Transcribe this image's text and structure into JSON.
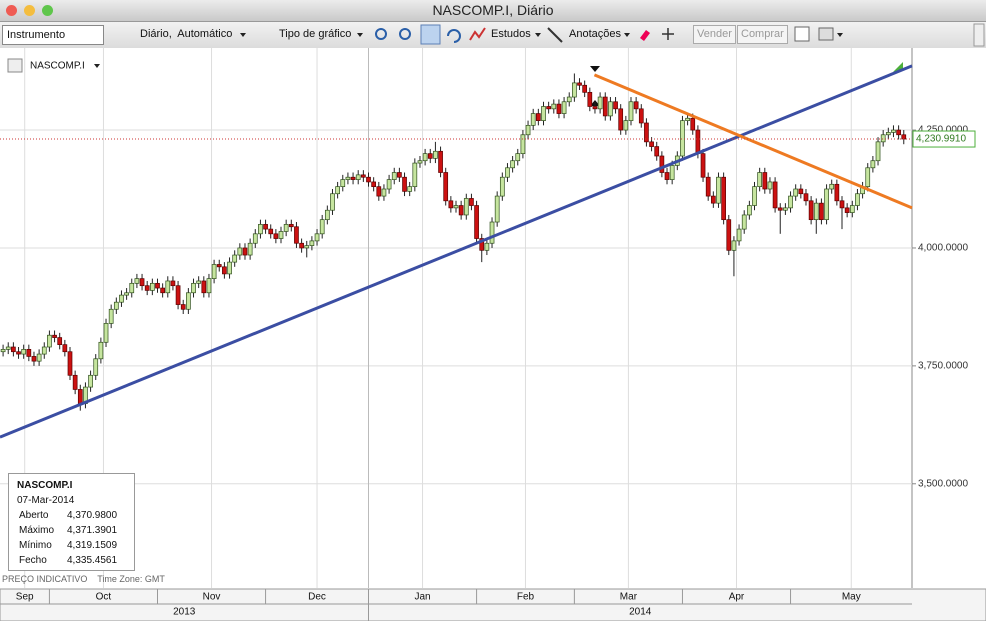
{
  "window": {
    "title": "NASCOMP.I, Diário"
  },
  "toolbar": {
    "instrument": "Instrumento",
    "period": "Diário,  Automático",
    "chart_type": "Tipo de gráfico",
    "studies": "Estudos",
    "annotations": "Anotações",
    "sell": "Vender",
    "buy": "Comprar"
  },
  "chart_data": {
    "type": "candlestick",
    "instrument": "NASCOMP.I",
    "grid": true,
    "up_color": "#c6e59f",
    "down_color": "#cc1111",
    "xlim": [
      -0.6,
      176.6
    ],
    "xticks": [
      {
        "value": -12,
        "label": "Sep"
      },
      {
        "value": 9,
        "label": "Oct"
      },
      {
        "value": 30,
        "label": "Nov"
      },
      {
        "value": 51,
        "label": "Dec"
      },
      {
        "value": 71,
        "label": "Jan"
      },
      {
        "value": 92,
        "label": "Feb"
      },
      {
        "value": 111,
        "label": "Mar"
      },
      {
        "value": 132,
        "label": "Apr"
      },
      {
        "value": 153,
        "label": "May"
      }
    ],
    "year_ticks": [
      {
        "value": -80,
        "label": "2013"
      },
      {
        "value": 71,
        "label": "2014"
      }
    ],
    "ylim": [
      3279,
      4424
    ],
    "yticks": [
      {
        "value": 3500,
        "label": "3,500.0000"
      },
      {
        "value": 3750,
        "label": "3,750.0000"
      },
      {
        "value": 4000,
        "label": "4,000.0000"
      },
      {
        "value": 4250,
        "label": "4,250.0000"
      }
    ],
    "open": [
      3780,
      3785,
      3790,
      3780,
      3775,
      3785,
      3770,
      3760,
      3775,
      3790,
      3815,
      3810,
      3795,
      3780,
      3730,
      3700,
      3670,
      3705,
      3730,
      3765,
      3800,
      3840,
      3870,
      3885,
      3900,
      3905,
      3925,
      3935,
      3920,
      3910,
      3925,
      3915,
      3905,
      3930,
      3920,
      3880,
      3870,
      3905,
      3925,
      3930,
      3905,
      3935,
      3965,
      3960,
      3945,
      3970,
      3985,
      4000,
      3985,
      4010,
      4030,
      4050,
      4040,
      4030,
      4020,
      4035,
      4050,
      4045,
      4010,
      4000,
      4005,
      4015,
      4030,
      4060,
      4080,
      4115,
      4130,
      4145,
      4150,
      4145,
      4155,
      4150,
      4140,
      4130,
      4110,
      4125,
      4145,
      4160,
      4150,
      4120,
      4130,
      4180,
      4185,
      4200,
      4190,
      4205,
      4160,
      4100,
      4085,
      4090,
      4070,
      4105,
      4090,
      4020,
      3995,
      4010,
      4055,
      4110,
      4150,
      4170,
      4185,
      4200,
      4240,
      4260,
      4285,
      4270,
      4300,
      4295,
      4305,
      4285,
      4310,
      4320,
      4350,
      4345,
      4330,
      4300,
      4295,
      4320,
      4280,
      4310,
      4295,
      4250,
      4270,
      4310,
      4295,
      4265,
      4225,
      4215,
      4195,
      4160,
      4145,
      4175,
      4195,
      4270,
      4275,
      4250,
      4200,
      4150,
      4110,
      4095,
      4150,
      4060,
      3995,
      4015,
      4040,
      4070,
      4090,
      4130,
      4160,
      4125,
      4140,
      4085,
      4080,
      4085,
      4110,
      4125,
      4115,
      4100,
      4060,
      4095,
      4060,
      4125,
      4135,
      4100,
      4085,
      4075,
      4090,
      4115,
      4130,
      4170,
      4185,
      4225,
      4240,
      4245,
      4250,
      4240
    ],
    "high": [
      3795,
      3800,
      3800,
      3790,
      3795,
      3795,
      3780,
      3785,
      3800,
      3825,
      3825,
      3820,
      3805,
      3790,
      3740,
      3710,
      3715,
      3740,
      3775,
      3810,
      3850,
      3880,
      3895,
      3910,
      3915,
      3935,
      3945,
      3945,
      3930,
      3935,
      3935,
      3925,
      3940,
      3940,
      3930,
      3890,
      3915,
      3935,
      3940,
      3940,
      3945,
      3975,
      3975,
      3970,
      3980,
      3995,
      4010,
      4010,
      4020,
      4040,
      4060,
      4060,
      4050,
      4040,
      4045,
      4060,
      4060,
      4055,
      4020,
      4015,
      4025,
      4040,
      4070,
      4090,
      4125,
      4140,
      4155,
      4160,
      4160,
      4165,
      4165,
      4160,
      4150,
      4140,
      4135,
      4155,
      4170,
      4170,
      4160,
      4140,
      4190,
      4195,
      4210,
      4210,
      4225,
      4215,
      4170,
      4110,
      4100,
      4100,
      4115,
      4115,
      4100,
      4030,
      4020,
      4065,
      4120,
      4160,
      4180,
      4195,
      4210,
      4250,
      4270,
      4295,
      4295,
      4310,
      4310,
      4315,
      4315,
      4320,
      4330,
      4370,
      4360,
      4355,
      4340,
      4310,
      4330,
      4330,
      4320,
      4320,
      4305,
      4280,
      4320,
      4320,
      4305,
      4275,
      4235,
      4225,
      4205,
      4170,
      4185,
      4205,
      4280,
      4285,
      4285,
      4260,
      4210,
      4160,
      4120,
      4160,
      4160,
      4070,
      4025,
      4050,
      4080,
      4100,
      4140,
      4170,
      4170,
      4150,
      4150,
      4095,
      4095,
      4120,
      4135,
      4135,
      4125,
      4110,
      4105,
      4105,
      4135,
      4145,
      4145,
      4110,
      4095,
      4100,
      4125,
      4140,
      4180,
      4195,
      4235,
      4250,
      4255,
      4260,
      4260,
      4250
    ],
    "low": [
      3770,
      3775,
      3770,
      3765,
      3765,
      3760,
      3750,
      3750,
      3765,
      3780,
      3800,
      3785,
      3770,
      3720,
      3690,
      3655,
      3660,
      3695,
      3720,
      3755,
      3790,
      3830,
      3860,
      3875,
      3890,
      3895,
      3915,
      3910,
      3900,
      3900,
      3905,
      3895,
      3895,
      3910,
      3870,
      3860,
      3860,
      3895,
      3915,
      3895,
      3895,
      3925,
      3950,
      3935,
      3935,
      3960,
      3975,
      3975,
      3975,
      4000,
      4020,
      4030,
      4020,
      4010,
      4010,
      4025,
      4035,
      4000,
      3990,
      3980,
      3995,
      4005,
      4020,
      4050,
      4070,
      4105,
      4120,
      4135,
      4135,
      4135,
      4140,
      4130,
      4120,
      4100,
      4100,
      4115,
      4135,
      4140,
      4110,
      4110,
      4120,
      4170,
      4175,
      4180,
      4180,
      4150,
      4090,
      4075,
      4075,
      4060,
      4060,
      4080,
      4010,
      3970,
      3985,
      4000,
      4045,
      4100,
      4140,
      4160,
      4175,
      4190,
      4230,
      4250,
      4260,
      4260,
      4285,
      4285,
      4275,
      4275,
      4300,
      4310,
      4335,
      4320,
      4290,
      4285,
      4285,
      4270,
      4270,
      4285,
      4240,
      4240,
      4260,
      4285,
      4255,
      4215,
      4205,
      4185,
      4150,
      4135,
      4135,
      4165,
      4185,
      4260,
      4240,
      4190,
      4140,
      4100,
      4085,
      4085,
      4050,
      3985,
      3940,
      4005,
      4030,
      4060,
      4080,
      4120,
      4115,
      4115,
      4075,
      4030,
      4070,
      4075,
      4100,
      4105,
      4090,
      4050,
      4030,
      4050,
      4050,
      4115,
      4090,
      4040,
      4065,
      4065,
      4080,
      4105,
      4120,
      4160,
      4175,
      4215,
      4230,
      4235,
      4230,
      4220
    ],
    "close": [
      3785,
      3790,
      3780,
      3775,
      3785,
      3770,
      3760,
      3775,
      3790,
      3815,
      3810,
      3795,
      3780,
      3730,
      3700,
      3670,
      3705,
      3730,
      3765,
      3800,
      3840,
      3870,
      3885,
      3900,
      3905,
      3925,
      3935,
      3920,
      3910,
      3925,
      3915,
      3905,
      3930,
      3920,
      3880,
      3870,
      3905,
      3925,
      3930,
      3905,
      3935,
      3965,
      3960,
      3945,
      3970,
      3985,
      4000,
      3985,
      4010,
      4030,
      4050,
      4040,
      4030,
      4020,
      4035,
      4050,
      4045,
      4010,
      4000,
      4005,
      4015,
      4030,
      4060,
      4080,
      4115,
      4130,
      4145,
      4150,
      4145,
      4155,
      4150,
      4140,
      4130,
      4110,
      4125,
      4145,
      4160,
      4150,
      4120,
      4130,
      4180,
      4185,
      4200,
      4190,
      4205,
      4160,
      4100,
      4085,
      4090,
      4070,
      4105,
      4090,
      4020,
      3995,
      4010,
      4055,
      4110,
      4150,
      4170,
      4185,
      4200,
      4240,
      4260,
      4285,
      4270,
      4300,
      4295,
      4305,
      4285,
      4310,
      4320,
      4350,
      4345,
      4330,
      4300,
      4295,
      4320,
      4280,
      4310,
      4295,
      4250,
      4270,
      4310,
      4295,
      4265,
      4225,
      4215,
      4195,
      4160,
      4145,
      4175,
      4195,
      4270,
      4275,
      4250,
      4200,
      4150,
      4110,
      4095,
      4150,
      4060,
      3995,
      4015,
      4040,
      4070,
      4090,
      4130,
      4160,
      4125,
      4140,
      4085,
      4080,
      4085,
      4110,
      4125,
      4115,
      4100,
      4060,
      4095,
      4060,
      4125,
      4135,
      4100,
      4085,
      4075,
      4090,
      4115,
      4130,
      4170,
      4185,
      4225,
      4240,
      4245,
      4250,
      4240,
      4230.991
    ],
    "last_price": {
      "value": 4230.991,
      "label": "4,230.9910"
    },
    "trendlines": [
      {
        "color": "#3b4ea3",
        "points": [
          [
            -0.6,
            3599
          ],
          [
            176.6,
            4386
          ]
        ]
      },
      {
        "color": "#ee7a22",
        "points": [
          [
            114.9,
            4367
          ],
          [
            176.6,
            4085
          ]
        ]
      }
    ]
  },
  "info_box": {
    "symbol": "NASCOMP.I",
    "date": "07-Mar-2014",
    "rows": [
      [
        "Aberto",
        "4,370.9800"
      ],
      [
        "Máximo",
        "4,371.3901"
      ],
      [
        "Mínimo",
        "4,319.1509"
      ],
      [
        "Fecho",
        "4,335.4561"
      ]
    ]
  },
  "footer": {
    "note": "PREÇO INDICATIVO",
    "timezone": "Time Zone: GMT"
  }
}
